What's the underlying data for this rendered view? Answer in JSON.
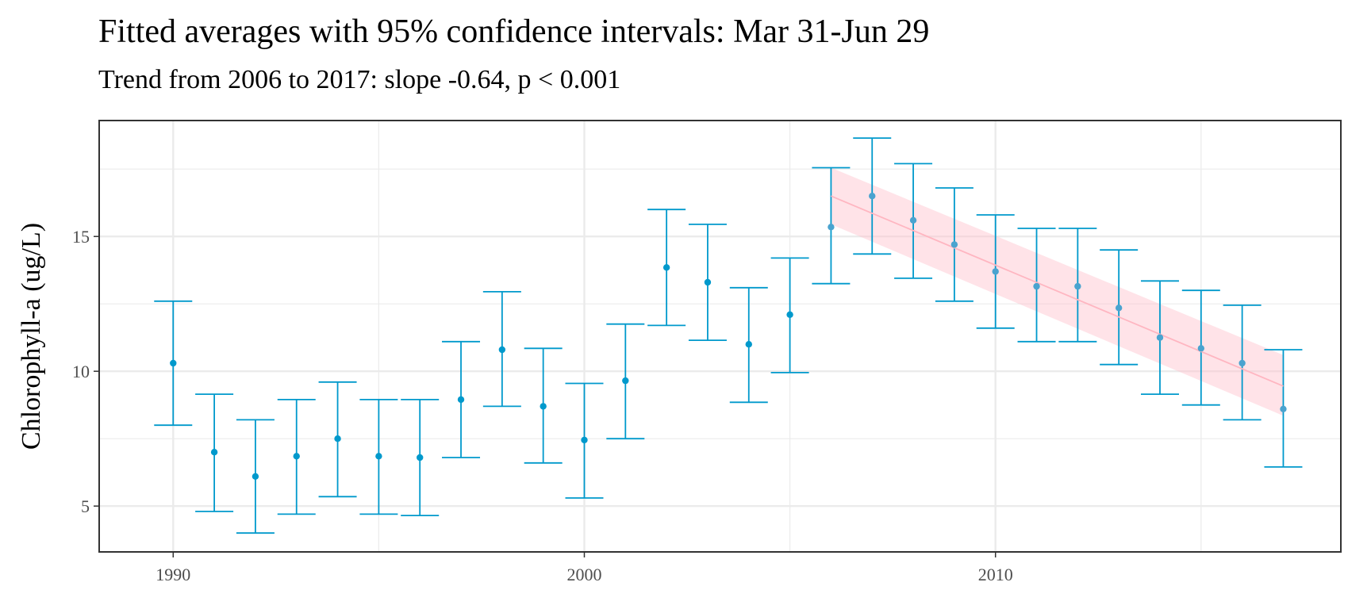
{
  "chart_data": {
    "type": "scatter",
    "title": "Fitted averages with 95% confidence intervals: Mar 31-Jun 29",
    "subtitle": "Trend from 2006 to 2017: slope -0.64, p < 0.001",
    "xlabel": "",
    "ylabel": "Chlorophyll-a (ug/L)",
    "xlim": [
      1988.2,
      2018.4
    ],
    "ylim": [
      3.3,
      19.3
    ],
    "x_ticks": [
      1990,
      2000,
      2010
    ],
    "y_ticks": [
      5,
      10,
      15
    ],
    "grid": true,
    "colors": {
      "points": "#0099cc",
      "trend": "#ffb6c1",
      "trend_band": "#ffc0cb",
      "grid": "#ebebeb",
      "panel_border": "#333333"
    },
    "series": [
      {
        "type": "errorbar",
        "x": [
          1990,
          1991,
          1992,
          1993,
          1994,
          1995,
          1996,
          1997,
          1998,
          1999,
          2000,
          2001,
          2002,
          2003,
          2004,
          2005,
          2006,
          2007,
          2008,
          2009,
          2010,
          2011,
          2012,
          2013,
          2014,
          2015,
          2016,
          2017
        ],
        "y": [
          10.3,
          7.0,
          6.1,
          6.85,
          7.5,
          6.85,
          6.8,
          8.95,
          10.8,
          8.7,
          7.45,
          9.65,
          13.85,
          13.3,
          11.0,
          12.1,
          15.35,
          16.5,
          15.6,
          14.7,
          13.7,
          13.15,
          13.15,
          12.35,
          11.25,
          10.85,
          10.3,
          8.6
        ],
        "lower": [
          8.0,
          4.8,
          4.0,
          4.7,
          5.35,
          4.7,
          4.65,
          6.8,
          8.7,
          6.6,
          5.3,
          7.5,
          11.7,
          11.15,
          8.85,
          9.95,
          13.25,
          14.35,
          13.45,
          12.6,
          11.6,
          11.1,
          11.1,
          10.25,
          9.15,
          8.75,
          8.2,
          6.45
        ],
        "upper": [
          12.6,
          9.15,
          8.2,
          8.95,
          9.6,
          8.95,
          8.95,
          11.1,
          12.95,
          10.85,
          9.55,
          11.75,
          16.0,
          15.45,
          13.1,
          14.2,
          17.55,
          18.65,
          17.7,
          16.8,
          15.8,
          15.3,
          15.3,
          14.5,
          13.35,
          13.0,
          12.45,
          10.8
        ]
      },
      {
        "type": "trend",
        "x": [
          2006,
          2017
        ],
        "y": [
          16.5,
          9.45
        ],
        "lower": [
          15.45,
          8.35
        ],
        "upper": [
          17.55,
          10.6
        ]
      }
    ]
  }
}
